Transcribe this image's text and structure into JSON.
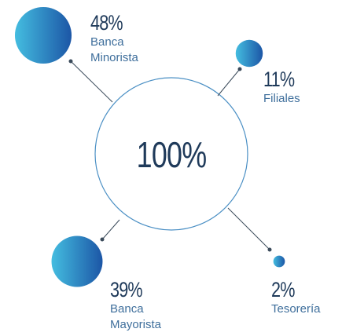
{
  "chart_data": {
    "type": "bubble",
    "center_label": "100%",
    "categories": [
      "Banca Minorista",
      "Filiales",
      "Banca Mayorista",
      "Tesorería"
    ],
    "values": [
      48,
      11,
      39,
      2
    ],
    "value_labels": [
      "48%",
      "11%",
      "39%",
      "2%"
    ],
    "color_start": "#44bde0",
    "color_end": "#1c56a6"
  }
}
